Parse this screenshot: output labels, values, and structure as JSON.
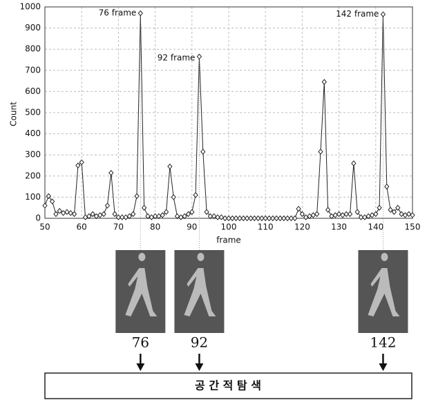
{
  "chart_data": {
    "type": "line",
    "x_label": "frame",
    "y_label": "Count",
    "x": [
      50,
      51,
      52,
      53,
      54,
      55,
      56,
      57,
      58,
      59,
      60,
      61,
      62,
      63,
      64,
      65,
      66,
      67,
      68,
      69,
      70,
      71,
      72,
      73,
      74,
      75,
      76,
      77,
      78,
      79,
      80,
      81,
      82,
      83,
      84,
      85,
      86,
      87,
      88,
      89,
      90,
      91,
      92,
      93,
      94,
      95,
      96,
      97,
      98,
      99,
      100,
      101,
      102,
      103,
      104,
      105,
      106,
      107,
      108,
      109,
      110,
      111,
      112,
      113,
      114,
      115,
      116,
      117,
      118,
      119,
      120,
      121,
      122,
      123,
      124,
      125,
      126,
      127,
      128,
      129,
      130,
      131,
      132,
      133,
      134,
      135,
      136,
      137,
      138,
      139,
      140,
      141,
      142,
      143,
      144,
      145,
      146,
      147,
      148,
      149,
      150
    ],
    "values": [
      60,
      105,
      80,
      20,
      35,
      25,
      30,
      25,
      20,
      250,
      265,
      5,
      10,
      20,
      10,
      15,
      20,
      60,
      215,
      20,
      5,
      5,
      5,
      10,
      20,
      105,
      970,
      50,
      10,
      5,
      10,
      10,
      15,
      30,
      245,
      100,
      10,
      5,
      10,
      20,
      30,
      110,
      765,
      315,
      30,
      10,
      10,
      5,
      5,
      0,
      0,
      0,
      0,
      0,
      0,
      0,
      0,
      0,
      0,
      0,
      0,
      0,
      0,
      0,
      0,
      0,
      0,
      0,
      0,
      45,
      20,
      5,
      10,
      15,
      20,
      315,
      645,
      40,
      10,
      15,
      20,
      15,
      20,
      20,
      260,
      30,
      5,
      5,
      10,
      15,
      20,
      50,
      965,
      150,
      40,
      30,
      50,
      20,
      15,
      20,
      15
    ],
    "color": "#222",
    "xlim": [
      50,
      150
    ],
    "xticks": [
      50,
      60,
      70,
      80,
      90,
      100,
      110,
      120,
      130,
      140,
      150
    ],
    "ylim": [
      0,
      1000
    ],
    "yticks": [
      0,
      100,
      200,
      300,
      400,
      500,
      600,
      700,
      800,
      900,
      1000
    ],
    "grid": true,
    "annotations": [
      {
        "label": "76 frame",
        "x": 76,
        "y": 970
      },
      {
        "label": "92 frame",
        "x": 92,
        "y": 765
      },
      {
        "label": "142 frame",
        "x": 142,
        "y": 965
      }
    ]
  },
  "frames": {
    "labels": [
      "76",
      "92",
      "142"
    ]
  },
  "search_box": "공 간 적 탐 색"
}
